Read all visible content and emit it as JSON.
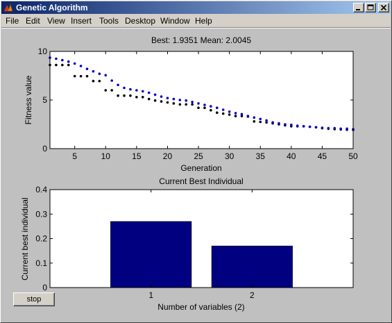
{
  "window": {
    "title": "Genetic Algorithm",
    "controls": {
      "minimize": "minimize",
      "maximize": "maximize",
      "close": "close"
    }
  },
  "menu": {
    "items": [
      {
        "label": "File"
      },
      {
        "label": "Edit"
      },
      {
        "label": "View"
      },
      {
        "label": "Insert"
      },
      {
        "label": "Tools"
      },
      {
        "label": "Desktop"
      },
      {
        "label": "Window"
      },
      {
        "label": "Help"
      }
    ]
  },
  "stop_button": {
    "label": "stop"
  },
  "colors": {
    "best": "#000000",
    "mean": "#0000c8",
    "bar": "#000080",
    "window_bg": "#c0c0c0",
    "axes_bg": "#ffffff"
  },
  "chart_data": [
    {
      "type": "scatter",
      "title": "Best: 1.9351 Mean: 2.0045",
      "xlabel": "Generation",
      "ylabel": "Fitness value",
      "xlim": [
        1,
        50
      ],
      "ylim": [
        0,
        10
      ],
      "xticks": [
        5,
        10,
        15,
        20,
        25,
        30,
        35,
        40,
        45,
        50
      ],
      "yticks": [
        0,
        5,
        10
      ],
      "grid": false,
      "series": [
        {
          "color": "#000000",
          "x": [
            1,
            2,
            3,
            4,
            5,
            6,
            7,
            8,
            9,
            10,
            11,
            12,
            13,
            14,
            15,
            16,
            17,
            18,
            19,
            20,
            21,
            22,
            23,
            24,
            25,
            26,
            27,
            28,
            29,
            30,
            31,
            32,
            33,
            34,
            35,
            36,
            37,
            38,
            39,
            40,
            41,
            42,
            43,
            44,
            45,
            46,
            47,
            48,
            49,
            50
          ],
          "y": [
            8.6,
            8.6,
            8.6,
            8.6,
            7.45,
            7.45,
            7.45,
            6.95,
            6.95,
            6.0,
            6.0,
            5.45,
            5.45,
            5.45,
            5.3,
            5.3,
            5.1,
            4.95,
            4.85,
            4.75,
            4.65,
            4.55,
            4.55,
            4.55,
            4.2,
            4.2,
            3.95,
            3.7,
            3.6,
            3.5,
            3.35,
            3.35,
            3.3,
            2.8,
            2.75,
            2.7,
            2.6,
            2.5,
            2.4,
            2.3,
            2.3,
            2.3,
            2.25,
            2.2,
            2.1,
            2.05,
            2.0,
            1.97,
            1.95,
            1.94
          ]
        },
        {
          "color": "#0000c8",
          "x": [
            1,
            2,
            3,
            4,
            5,
            6,
            7,
            8,
            9,
            10,
            11,
            12,
            13,
            14,
            15,
            16,
            17,
            18,
            19,
            20,
            21,
            22,
            23,
            24,
            25,
            26,
            27,
            28,
            29,
            30,
            31,
            32,
            33,
            34,
            35,
            36,
            37,
            38,
            39,
            40,
            41,
            42,
            43,
            44,
            45,
            46,
            47,
            48,
            49,
            50
          ],
          "y": [
            9.35,
            9.25,
            9.1,
            8.95,
            8.75,
            8.5,
            8.2,
            7.95,
            7.7,
            7.55,
            7.0,
            6.55,
            6.25,
            6.1,
            6.0,
            5.9,
            5.75,
            5.55,
            5.35,
            5.2,
            5.1,
            5.0,
            4.95,
            4.8,
            4.65,
            4.5,
            4.35,
            4.2,
            4.0,
            3.8,
            3.65,
            3.55,
            3.35,
            3.2,
            3.05,
            2.9,
            2.7,
            2.6,
            2.5,
            2.45,
            2.35,
            2.3,
            2.25,
            2.2,
            2.15,
            2.1,
            2.1,
            2.05,
            2.05,
            2.0
          ]
        }
      ]
    },
    {
      "type": "bar",
      "title": "Current Best Individual",
      "xlabel": "Number of variables (2)",
      "ylabel": "Current best individual",
      "categories": [
        "1",
        "2"
      ],
      "values": [
        0.27,
        0.17
      ],
      "xlim": [
        0,
        3
      ],
      "ylim": [
        0,
        0.4
      ],
      "yticks": [
        "0",
        "0.1",
        "0.2",
        "0.3",
        "0.4"
      ],
      "grid": false
    }
  ]
}
